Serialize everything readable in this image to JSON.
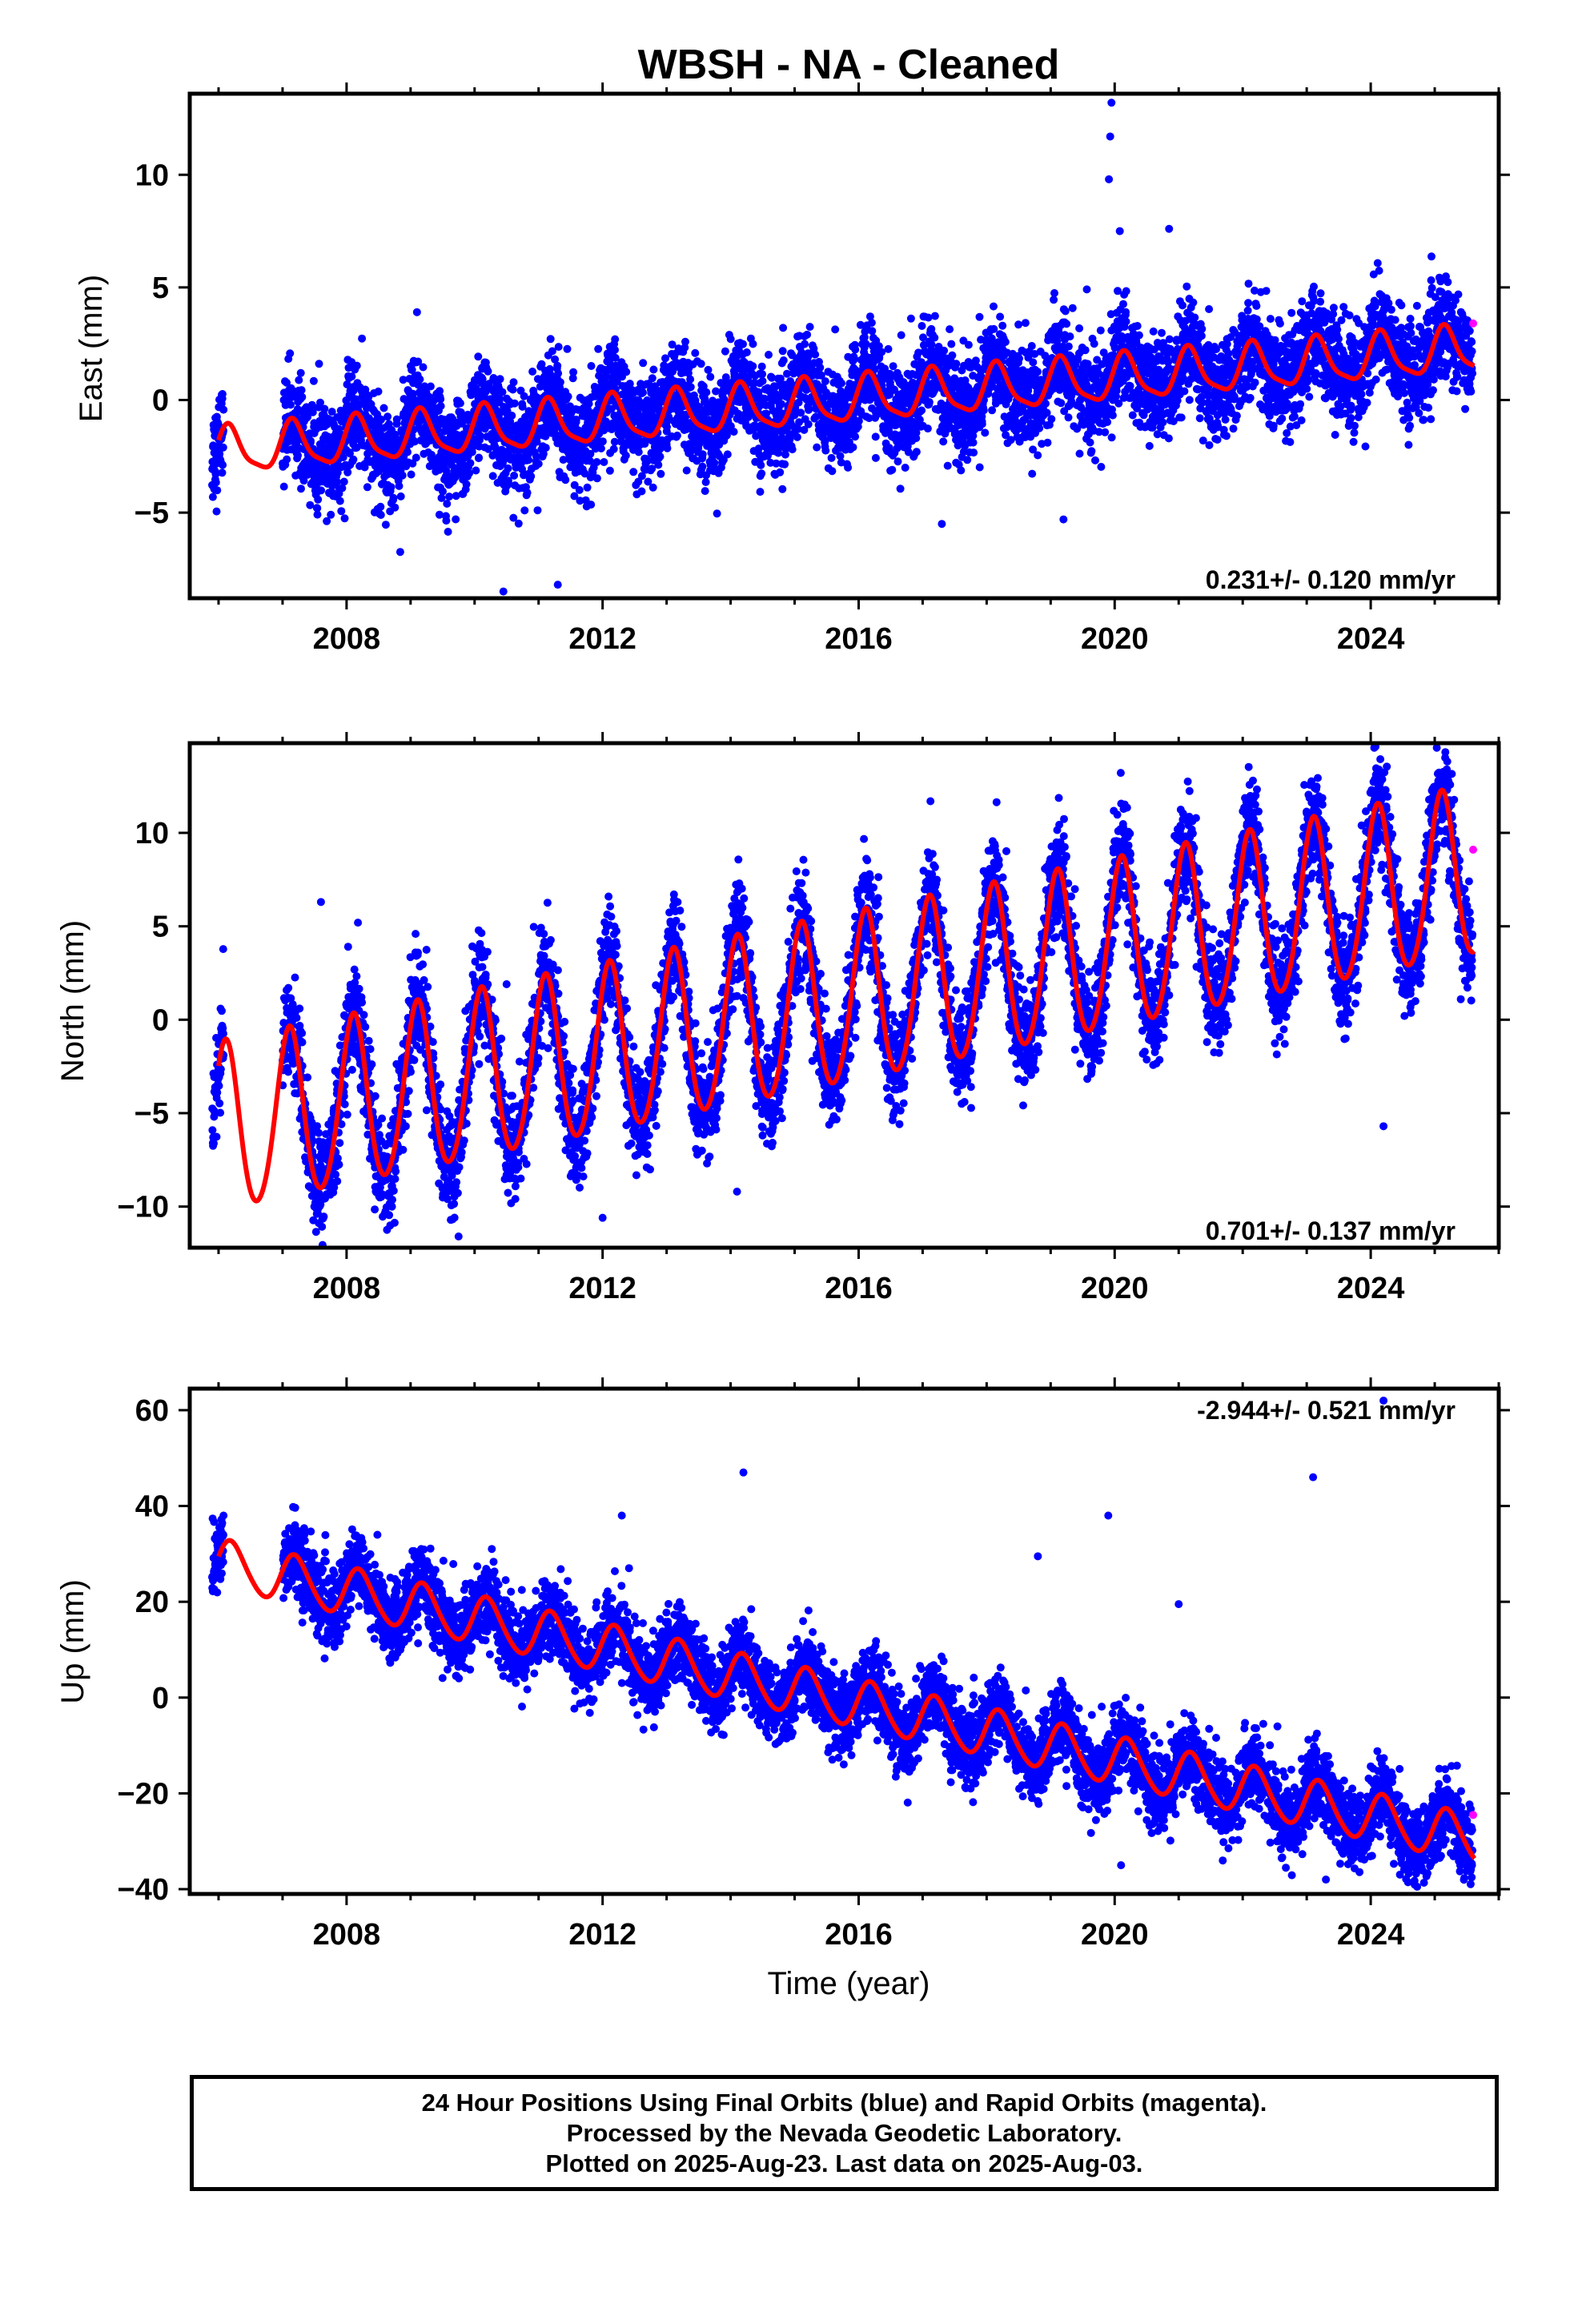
{
  "title": "WBSH  - NA - Cleaned",
  "colors": {
    "final_orbits": "#0000ff",
    "rapid_orbits": "#ff00ff",
    "model": "#ff0000",
    "frame": "#000000"
  },
  "chart_data": [
    {
      "type": "scatter",
      "component": "East",
      "ylabel": "East (mm)",
      "xlabel": "",
      "xlim": [
        2005.55,
        2026.0
      ],
      "ylim": [
        -8.8,
        13.6
      ],
      "xticks": [
        2008,
        2012,
        2016,
        2020,
        2024
      ],
      "yticks": [
        -5,
        0,
        5,
        10
      ],
      "grid": false,
      "rate_label": "0.231+/- 0.120 mm/yr",
      "rate_placement": "bottom-right",
      "model": {
        "offset_at_2006": -2.3,
        "rate_mm_per_yr": 0.231,
        "annual_amplitude": 1.0,
        "annual_phase": 0.55,
        "semiannual_amplitude": 0.25
      },
      "data_span": [
        2005.9,
        2025.59
      ],
      "gap": [
        2006.08,
        2007.0
      ],
      "noise_sd": 1.1,
      "outliers": [
        {
          "x": 2019.95,
          "y": 13.2
        },
        {
          "x": 2019.93,
          "y": 11.7
        },
        {
          "x": 2019.91,
          "y": 9.8
        },
        {
          "x": 2020.08,
          "y": 7.5
        },
        {
          "x": 2020.85,
          "y": 7.6
        },
        {
          "x": 2010.45,
          "y": -8.5
        },
        {
          "x": 2011.3,
          "y": -8.2
        },
        {
          "x": 2009.1,
          "y": 3.9
        },
        {
          "x": 2019.2,
          "y": -5.3
        },
        {
          "x": 2017.3,
          "y": -5.5
        }
      ],
      "rapid_points": [
        {
          "x": 2025.6,
          "y": 3.4
        }
      ]
    },
    {
      "type": "scatter",
      "component": "North",
      "ylabel": "North (mm)",
      "xlabel": "",
      "xlim": [
        2005.55,
        2026.0
      ],
      "ylim": [
        -12.2,
        14.8
      ],
      "xticks": [
        2008,
        2012,
        2016,
        2020,
        2024
      ],
      "yticks": [
        -10,
        -5,
        0,
        5,
        10
      ],
      "grid": false,
      "rate_label": "0.701+/- 0.137 mm/yr",
      "rate_placement": "bottom-right",
      "model": {
        "offset_at_2006": -6.0,
        "rate_mm_per_yr": 0.701,
        "annual_amplitude": 4.5,
        "annual_phase": 0.9,
        "semiannual_amplitude": 0.4
      },
      "data_span": [
        2005.9,
        2025.59
      ],
      "gap": [
        2006.08,
        2007.0
      ],
      "noise_sd": 1.4,
      "outliers": [
        {
          "x": 2009.75,
          "y": -11.6
        },
        {
          "x": 2012.0,
          "y": -10.6
        },
        {
          "x": 2024.2,
          "y": -5.7
        },
        {
          "x": 2007.6,
          "y": 6.3
        },
        {
          "x": 2014.1,
          "y": -9.2
        },
        {
          "x": 2010.5,
          "y": 1.9
        }
      ],
      "rapid_points": [
        {
          "x": 2025.6,
          "y": 9.1
        }
      ]
    },
    {
      "type": "scatter",
      "component": "Up",
      "ylabel": "Up (mm)",
      "xlabel": "Time (year)",
      "xlim": [
        2005.55,
        2026.0
      ],
      "ylim": [
        -41.0,
        64.5
      ],
      "xticks": [
        2008,
        2012,
        2016,
        2020,
        2024
      ],
      "yticks": [
        -40,
        -20,
        0,
        20,
        40,
        60
      ],
      "grid": false,
      "rate_label": "-2.944+/- 0.521 mm/yr",
      "rate_placement": "top-right",
      "model": {
        "offset_at_2006": 28.0,
        "rate_mm_per_yr": -2.944,
        "annual_amplitude": 5.0,
        "annual_phase": 0.3,
        "semiannual_amplitude": 0.5
      },
      "data_span": [
        2005.9,
        2025.59
      ],
      "gap": [
        2006.08,
        2007.0
      ],
      "noise_sd": 4.0,
      "outliers": [
        {
          "x": 2014.2,
          "y": 47.0
        },
        {
          "x": 2023.1,
          "y": 46.0
        },
        {
          "x": 2019.9,
          "y": 38.0
        },
        {
          "x": 2024.2,
          "y": 62.0
        },
        {
          "x": 2018.8,
          "y": 29.5
        },
        {
          "x": 2021.0,
          "y": 19.5
        },
        {
          "x": 2023.3,
          "y": -38.0
        },
        {
          "x": 2020.1,
          "y": -35.0
        },
        {
          "x": 2012.3,
          "y": 38.0
        }
      ],
      "rapid_points": [
        {
          "x": 2025.6,
          "y": -24.5
        }
      ]
    }
  ],
  "footer": {
    "line1": "24 Hour Positions Using Final Orbits (blue) and Rapid Orbits (magenta).",
    "line2": "Processed by the Nevada Geodetic Laboratory.",
    "line3": "Plotted on 2025-Aug-23. Last data on 2025-Aug-03."
  }
}
